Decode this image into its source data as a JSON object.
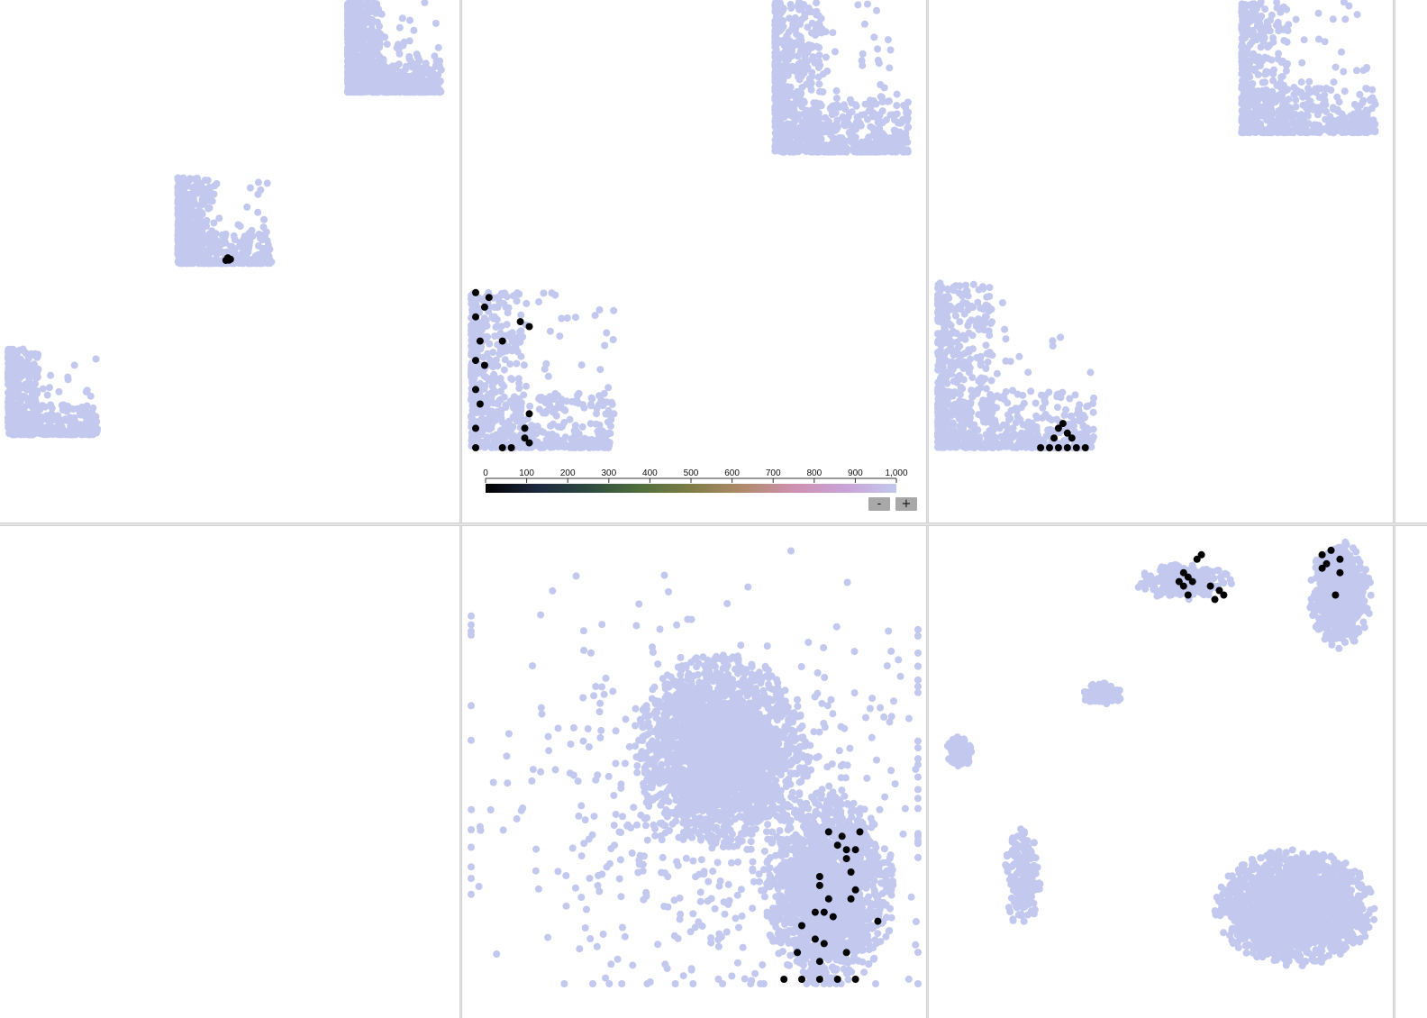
{
  "colors": {
    "background": "#ffffff",
    "point_default": "#c2c8ee",
    "point_selected": "#000000",
    "divider": "#d9d9d9"
  },
  "colorbar": {
    "ticks": [
      "0",
      "100",
      "200",
      "300",
      "400",
      "500",
      "600",
      "700",
      "800",
      "900",
      "1,000"
    ],
    "domain": [
      0,
      1000
    ],
    "stops": [
      "#000000",
      "#1c2740",
      "#2c4a3e",
      "#4f6f3c",
      "#7f7c45",
      "#b08a6a",
      "#cf90b0",
      "#c9a2d8",
      "#c2c8ee"
    ]
  },
  "zoom": {
    "minus_label": "-",
    "plus_label": "+"
  },
  "chart_data": [
    {
      "type": "scatter",
      "panel": "top-left",
      "title": "",
      "xlabel": "",
      "ylabel": "",
      "grid": false,
      "clusters": [
        {
          "name": "",
          "count": 900,
          "shape": "L",
          "x": [
            0.77,
            0.98
          ],
          "y": [
            0.0,
            0.19
          ],
          "color": "#c2c8ee"
        },
        {
          "name": "",
          "count": 600,
          "shape": "L",
          "x": [
            0.39,
            0.6
          ],
          "y": [
            0.37,
            0.55
          ],
          "color": "#c2c8ee"
        },
        {
          "name": "",
          "count": 500,
          "shape": "L",
          "x": [
            0.01,
            0.21
          ],
          "y": [
            0.73,
            0.91
          ],
          "color": "#c2c8ee"
        }
      ],
      "highlighted": [
        {
          "x": 0.502,
          "y": 0.541,
          "count": 6
        }
      ]
    },
    {
      "type": "scatter",
      "panel": "top-middle",
      "title": "",
      "xlabel": "",
      "ylabel": "",
      "grid": false,
      "clusters": [
        {
          "name": "",
          "count": 900,
          "shape": "L",
          "x": [
            0.68,
            0.98
          ],
          "y": [
            0.0,
            0.31
          ],
          "color": "#c2c8ee"
        },
        {
          "name": "",
          "count": 700,
          "shape": "L",
          "x": [
            0.0,
            0.32
          ],
          "y": [
            0.6,
            0.92
          ],
          "color": "#c2c8ee"
        }
      ],
      "highlighted": [
        {
          "x": 0.01,
          "y": 0.6
        },
        {
          "x": 0.04,
          "y": 0.61
        },
        {
          "x": 0.03,
          "y": 0.63
        },
        {
          "x": 0.01,
          "y": 0.65
        },
        {
          "x": 0.11,
          "y": 0.66
        },
        {
          "x": 0.13,
          "y": 0.67
        },
        {
          "x": 0.02,
          "y": 0.7
        },
        {
          "x": 0.07,
          "y": 0.7
        },
        {
          "x": 0.01,
          "y": 0.74
        },
        {
          "x": 0.03,
          "y": 0.75
        },
        {
          "x": 0.01,
          "y": 0.8
        },
        {
          "x": 0.02,
          "y": 0.83
        },
        {
          "x": 0.13,
          "y": 0.85
        },
        {
          "x": 0.12,
          "y": 0.88
        },
        {
          "x": 0.01,
          "y": 0.88
        },
        {
          "x": 0.12,
          "y": 0.9
        },
        {
          "x": 0.13,
          "y": 0.91
        },
        {
          "x": 0.07,
          "y": 0.92
        },
        {
          "x": 0.09,
          "y": 0.92
        },
        {
          "x": 0.01,
          "y": 0.92
        }
      ]
    },
    {
      "type": "scatter",
      "panel": "top-right",
      "title": "",
      "xlabel": "",
      "ylabel": "",
      "grid": false,
      "clusters": [
        {
          "name": "",
          "count": 700,
          "shape": "L",
          "x": [
            0.68,
            0.98
          ],
          "y": [
            0.0,
            0.27
          ],
          "color": "#c2c8ee"
        },
        {
          "name": "",
          "count": 800,
          "shape": "L",
          "x": [
            0.0,
            0.35
          ],
          "y": [
            0.58,
            0.92
          ],
          "color": "#c2c8ee"
        }
      ],
      "highlighted": [
        {
          "x": 0.27,
          "y": 0.88
        },
        {
          "x": 0.28,
          "y": 0.87
        },
        {
          "x": 0.29,
          "y": 0.89
        },
        {
          "x": 0.3,
          "y": 0.9
        },
        {
          "x": 0.26,
          "y": 0.9
        },
        {
          "x": 0.23,
          "y": 0.92
        },
        {
          "x": 0.25,
          "y": 0.92
        },
        {
          "x": 0.27,
          "y": 0.92
        },
        {
          "x": 0.29,
          "y": 0.92
        },
        {
          "x": 0.31,
          "y": 0.92
        },
        {
          "x": 0.33,
          "y": 0.92
        }
      ]
    },
    {
      "type": "scatter",
      "panel": "bottom-left",
      "title": "",
      "xlabel": "",
      "ylabel": "",
      "grid": false,
      "clusters": [],
      "highlighted": []
    },
    {
      "type": "scatter",
      "panel": "bottom-middle",
      "title": "",
      "xlabel": "",
      "ylabel": "",
      "grid": false,
      "clusters": [
        {
          "name": "",
          "count": 2400,
          "shape": "blob",
          "cx": 0.56,
          "cy": 0.48,
          "rx": 0.2,
          "ry": 0.22,
          "color": "#c2c8ee"
        },
        {
          "name": "",
          "count": 1800,
          "shape": "blob",
          "cx": 0.8,
          "cy": 0.79,
          "rx": 0.15,
          "ry": 0.22,
          "color": "#c2c8ee"
        },
        {
          "name": "",
          "count": 600,
          "shape": "spread",
          "cx": 0.55,
          "cy": 0.6,
          "rx": 0.48,
          "ry": 0.42,
          "color": "#c2c8ee"
        }
      ],
      "highlighted": [
        {
          "x": 0.8,
          "y": 0.66
        },
        {
          "x": 0.83,
          "y": 0.67
        },
        {
          "x": 0.87,
          "y": 0.66
        },
        {
          "x": 0.82,
          "y": 0.69
        },
        {
          "x": 0.84,
          "y": 0.7
        },
        {
          "x": 0.86,
          "y": 0.7
        },
        {
          "x": 0.84,
          "y": 0.72
        },
        {
          "x": 0.78,
          "y": 0.76
        },
        {
          "x": 0.85,
          "y": 0.75
        },
        {
          "x": 0.78,
          "y": 0.78
        },
        {
          "x": 0.86,
          "y": 0.79
        },
        {
          "x": 0.8,
          "y": 0.81
        },
        {
          "x": 0.85,
          "y": 0.81
        },
        {
          "x": 0.77,
          "y": 0.84
        },
        {
          "x": 0.79,
          "y": 0.84
        },
        {
          "x": 0.81,
          "y": 0.85
        },
        {
          "x": 0.74,
          "y": 0.87
        },
        {
          "x": 0.91,
          "y": 0.86
        },
        {
          "x": 0.77,
          "y": 0.9
        },
        {
          "x": 0.79,
          "y": 0.91
        },
        {
          "x": 0.73,
          "y": 0.93
        },
        {
          "x": 0.84,
          "y": 0.93
        },
        {
          "x": 0.78,
          "y": 0.95
        },
        {
          "x": 0.7,
          "y": 0.99
        },
        {
          "x": 0.74,
          "y": 0.99
        },
        {
          "x": 0.78,
          "y": 0.99
        },
        {
          "x": 0.82,
          "y": 0.99
        },
        {
          "x": 0.86,
          "y": 0.99
        }
      ]
    },
    {
      "type": "scatter",
      "panel": "bottom-right",
      "title": "",
      "xlabel": "",
      "ylabel": "",
      "grid": false,
      "clusters": [
        {
          "name": "",
          "count": 300,
          "shape": "blob",
          "cx": 0.55,
          "cy": 0.1,
          "rx": 0.11,
          "ry": 0.04,
          "color": "#c2c8ee"
        },
        {
          "name": "",
          "count": 700,
          "shape": "blob",
          "cx": 0.9,
          "cy": 0.13,
          "rx": 0.07,
          "ry": 0.12,
          "color": "#c2c8ee"
        },
        {
          "name": "",
          "count": 120,
          "shape": "blob",
          "cx": 0.37,
          "cy": 0.35,
          "rx": 0.05,
          "ry": 0.025,
          "color": "#c2c8ee"
        },
        {
          "name": "",
          "count": 100,
          "shape": "blob",
          "cx": 0.05,
          "cy": 0.48,
          "rx": 0.03,
          "ry": 0.035,
          "color": "#c2c8ee"
        },
        {
          "name": "",
          "count": 200,
          "shape": "blob",
          "cx": 0.19,
          "cy": 0.76,
          "rx": 0.04,
          "ry": 0.12,
          "color": "#c2c8ee"
        },
        {
          "name": "",
          "count": 2000,
          "shape": "blob",
          "cx": 0.8,
          "cy": 0.83,
          "rx": 0.18,
          "ry": 0.13,
          "color": "#c2c8ee"
        }
      ],
      "highlighted": [
        {
          "x": 0.59,
          "y": 0.04
        },
        {
          "x": 0.58,
          "y": 0.05
        },
        {
          "x": 0.55,
          "y": 0.08
        },
        {
          "x": 0.56,
          "y": 0.09
        },
        {
          "x": 0.54,
          "y": 0.1
        },
        {
          "x": 0.55,
          "y": 0.11
        },
        {
          "x": 0.57,
          "y": 0.1
        },
        {
          "x": 0.61,
          "y": 0.11
        },
        {
          "x": 0.63,
          "y": 0.12
        },
        {
          "x": 0.64,
          "y": 0.13
        },
        {
          "x": 0.62,
          "y": 0.14
        },
        {
          "x": 0.56,
          "y": 0.13
        },
        {
          "x": 0.86,
          "y": 0.04
        },
        {
          "x": 0.88,
          "y": 0.03
        },
        {
          "x": 0.9,
          "y": 0.05
        },
        {
          "x": 0.87,
          "y": 0.06
        },
        {
          "x": 0.86,
          "y": 0.07
        },
        {
          "x": 0.9,
          "y": 0.08
        },
        {
          "x": 0.89,
          "y": 0.13
        }
      ]
    }
  ]
}
